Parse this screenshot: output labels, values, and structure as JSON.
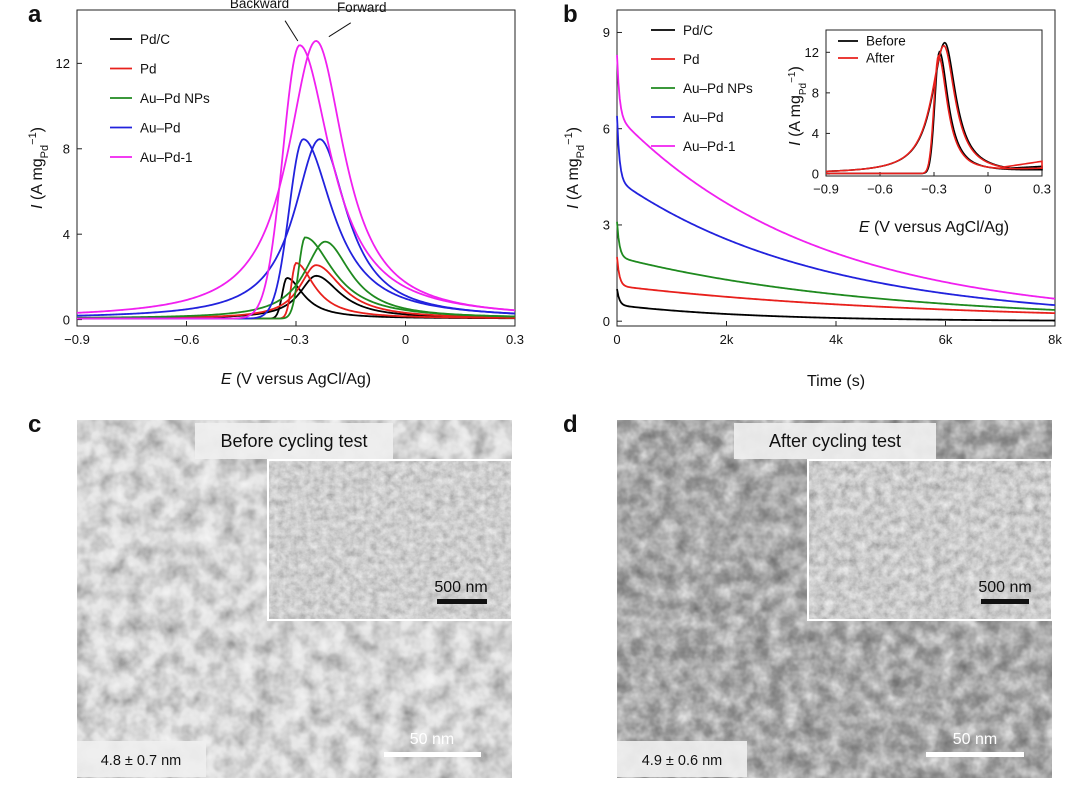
{
  "chart_data": [
    {
      "panel": "a",
      "type": "line",
      "xlabel_italic": "E",
      "xlabel_rest": " (V versus AgCl/Ag)",
      "ylabel_italic": "I",
      "ylabel_unit": " (A mg",
      "ylabel_sub": "Pd",
      "ylabel_sup": "−1",
      "ylabel_close": ")",
      "xlim": [
        -0.9,
        0.3
      ],
      "ylim": [
        -0.3,
        14.5
      ],
      "xticks": [
        -0.9,
        -0.6,
        -0.3,
        0,
        0.3
      ],
      "xtick_labels": [
        "−0.9",
        "−0.6",
        "−0.3",
        "0",
        "0.3"
      ],
      "yticks": [
        0,
        4,
        8,
        12
      ],
      "ytick_labels": [
        "0",
        "4",
        "8",
        "12"
      ],
      "annotations": [
        {
          "text": "Backward",
          "x": -0.4,
          "y": 14.6
        },
        {
          "text": "Forward",
          "x": -0.12,
          "y": 14.4
        }
      ],
      "series": [
        {
          "name": "Pd/C",
          "color": "#000000",
          "forward_peak": [
            -0.245,
            2.0
          ],
          "forward_width": [
            0.055,
            0.08
          ],
          "backward_peak": [
            -0.325,
            1.9
          ],
          "backward_width": [
            0.05,
            0.018
          ]
        },
        {
          "name": "Pd",
          "color": "#e8201c",
          "forward_peak": [
            -0.245,
            2.5
          ],
          "forward_width": [
            0.055,
            0.085
          ],
          "backward_peak": [
            -0.3,
            2.6
          ],
          "backward_width": [
            0.055,
            0.018
          ]
        },
        {
          "name": "Au–Pd NPs",
          "color": "#1f8a1f",
          "forward_peak": [
            -0.22,
            3.6
          ],
          "forward_width": [
            0.07,
            0.085
          ],
          "backward_peak": [
            -0.275,
            3.8
          ],
          "backward_width": [
            0.085,
            0.025
          ]
        },
        {
          "name": "Au–Pd",
          "color": "#2222dd",
          "forward_peak": [
            -0.235,
            8.4
          ],
          "forward_width": [
            0.085,
            0.09
          ],
          "backward_peak": [
            -0.28,
            8.4
          ],
          "backward_width": [
            0.09,
            0.055
          ]
        },
        {
          "name": "Au–Pd-1",
          "color": "#f020f0",
          "forward_peak": [
            -0.245,
            13.0
          ],
          "forward_width": [
            0.095,
            0.095
          ],
          "backward_peak": [
            -0.29,
            12.8
          ],
          "backward_width": [
            0.095,
            0.065
          ]
        }
      ]
    },
    {
      "panel": "b",
      "type": "line",
      "xlabel": "Time (s)",
      "ylabel_italic": "I",
      "ylabel_unit": " (A mg",
      "ylabel_sub": "Pd",
      "ylabel_sup": "−1",
      "ylabel_close": ")",
      "xlim": [
        0,
        8000
      ],
      "ylim": [
        -0.15,
        9.7
      ],
      "xticks": [
        0,
        2000,
        4000,
        6000,
        8000
      ],
      "xtick_labels": [
        "0",
        "2k",
        "4k",
        "6k",
        "8k"
      ],
      "yticks": [
        0,
        3,
        6,
        9
      ],
      "ytick_labels": [
        "0",
        "3",
        "6",
        "9"
      ],
      "series": [
        {
          "name": "Pd/C",
          "color": "#000000",
          "start": 1.0,
          "after_drop": 0.5,
          "end": 0.02
        },
        {
          "name": "Pd",
          "color": "#e8201c",
          "start": 2.0,
          "after_drop": 1.1,
          "end": 0.25
        },
        {
          "name": "Au–Pd NPs",
          "color": "#1f8a1f",
          "start": 3.1,
          "after_drop": 2.0,
          "end": 0.35
        },
        {
          "name": "Au–Pd",
          "color": "#2222dd",
          "start": 6.4,
          "after_drop": 4.4,
          "end": 0.5
        },
        {
          "name": "Au–Pd-1",
          "color": "#f020f0",
          "start": 8.3,
          "after_drop": 6.4,
          "end": 0.7
        }
      ],
      "inset": {
        "xlabel_italic": "E",
        "xlabel_rest": " (V versus AgCl/Ag)",
        "ylabel_italic": "I",
        "ylabel_unit": " (A mg",
        "ylabel_sub": "Pd",
        "ylabel_sup": "−1",
        "ylabel_close": ")",
        "xlim": [
          -0.9,
          0.3
        ],
        "ylim": [
          -0.2,
          14.2
        ],
        "xticks": [
          -0.9,
          -0.6,
          -0.3,
          0,
          0.3
        ],
        "xtick_labels": [
          "−0.9",
          "−0.6",
          "−0.3",
          "0",
          "0.3"
        ],
        "yticks": [
          0,
          4,
          8,
          12
        ],
        "ytick_labels": [
          "0",
          "4",
          "8",
          "12"
        ],
        "series": [
          {
            "name": "Before",
            "color": "#000000",
            "peak": [
              -0.24,
              12.9
            ],
            "back_peak": [
              -0.27,
              12.0
            ]
          },
          {
            "name": "After",
            "color": "#e8201c",
            "peak": [
              -0.245,
              12.6
            ],
            "back_peak": [
              -0.275,
              11.6
            ]
          }
        ]
      }
    }
  ],
  "panels": {
    "a": {
      "letter": "a"
    },
    "b": {
      "letter": "b"
    },
    "c": {
      "letter": "c",
      "title": "Before cycling test",
      "inset_scale": "500 nm",
      "scale": "50 nm",
      "size": "4.8 ± 0.7 nm"
    },
    "d": {
      "letter": "d",
      "title": "After cycling test",
      "inset_scale": "500 nm",
      "scale": "50 nm",
      "size": "4.9 ± 0.6 nm"
    }
  }
}
